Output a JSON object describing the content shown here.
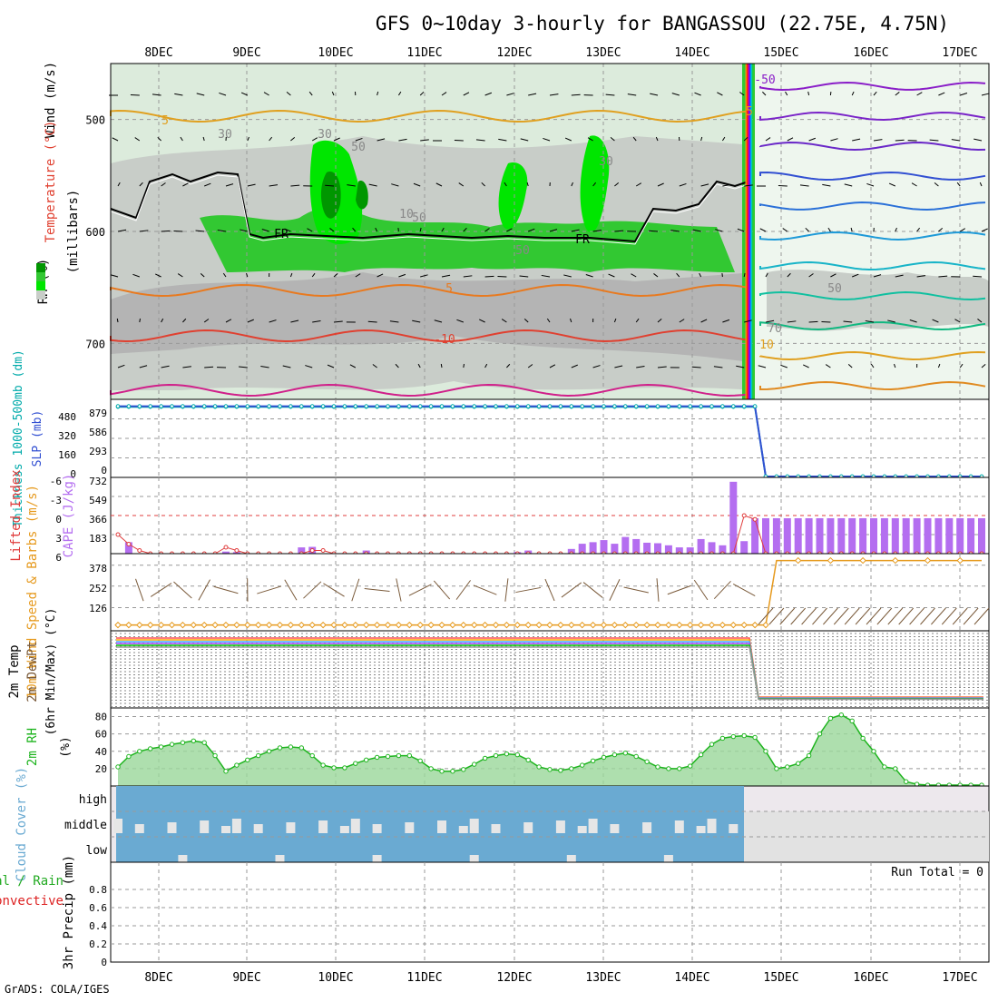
{
  "title": "GFS 0~10day 3-hourly for BANGASSOU (22.75E, 4.75N)",
  "credit": "GrADS: COLA/IGES",
  "colors": {
    "rh_dark": "#009600",
    "rh_mid": "#32c832",
    "rh_light": "#00e600",
    "gray_dark": "#b4b4b4",
    "gray_mid": "#c8cdc8",
    "gray_light": "#dcebdc",
    "gray_pale": "#eef6ee",
    "cloud_blue": "#6aaad2",
    "cape_purple": "#b46ef0",
    "li_red": "#e03c3c",
    "wind_orange": "#e69a1e",
    "thickness_cyan": "#00aaaa",
    "slp_blue": "#3250d2",
    "rh2m_green": "#1eb41e",
    "precip_green": "#22aa22",
    "precip_red": "#dd2222"
  },
  "chart_data": [
    {
      "type": "line",
      "panel": "upper-air",
      "title": "Wind (m/s) / Temperature (°C) / RH (%)",
      "ylabel": "(millibars)",
      "axis_labels": [
        "RH (%)",
        "Temperature (°C)",
        "Wind (m/s)"
      ],
      "yticks": [
        500,
        600,
        700
      ],
      "ylim": [
        450,
        750
      ],
      "x_dates": [
        "8DEC",
        "9DEC",
        "10DEC",
        "11DEC",
        "12DEC",
        "13DEC",
        "14DEC",
        "15DEC",
        "16DEC",
        "17DEC"
      ],
      "contour_labels": [
        "5",
        "5",
        "-5",
        "-10",
        "10",
        "-50",
        "FR",
        "FR",
        "30",
        "30",
        "30",
        "50",
        "50",
        "50",
        "50",
        "70",
        "10"
      ],
      "freezing_level_label": "FR"
    },
    {
      "type": "line",
      "panel": "thickness-slp",
      "ylabel_left": "Thickness 1000-500mb (dm)",
      "ylabel_right": "SLP (mb)",
      "left_ticks": [
        "480",
        "320",
        "160",
        "0"
      ],
      "right_ticks": [
        "879",
        "586",
        "293",
        "0"
      ],
      "series": [
        {
          "name": "thickness",
          "values": [
            905,
            905,
            905,
            905,
            905,
            905,
            905,
            905,
            905,
            905,
            905,
            905,
            905,
            905,
            905,
            905,
            905,
            905,
            905,
            905,
            905,
            905,
            905,
            905,
            905,
            905,
            905,
            905,
            905,
            905,
            905,
            905,
            905,
            905,
            905,
            905,
            905,
            905,
            905,
            905,
            905,
            905,
            905,
            905,
            905,
            905,
            905,
            905,
            905,
            905,
            905,
            905,
            905,
            905,
            905,
            905,
            905,
            905,
            905,
            905,
            10,
            10,
            10,
            10,
            10,
            10,
            10,
            10,
            10,
            10,
            10,
            10,
            10,
            10,
            10,
            10,
            10,
            10,
            10,
            10,
            10
          ]
        },
        {
          "name": "slp",
          "values": [
            912,
            912,
            912,
            912,
            912,
            912,
            912,
            912,
            912,
            912,
            912,
            912,
            912,
            912,
            912,
            912,
            912,
            912,
            912,
            912,
            912,
            912,
            912,
            912,
            912,
            912,
            912,
            912,
            912,
            912,
            912,
            912,
            912,
            912,
            912,
            912,
            912,
            912,
            912,
            912,
            912,
            912,
            912,
            912,
            912,
            912,
            912,
            912,
            912,
            912,
            912,
            912,
            912,
            912,
            912,
            912,
            912,
            912,
            912,
            912,
            12,
            12,
            12,
            12,
            12,
            12,
            12,
            12,
            12,
            12,
            12,
            12,
            12,
            12,
            12,
            12,
            12,
            12,
            12,
            12,
            12
          ]
        }
      ],
      "ylim": [
        0,
        1000
      ]
    },
    {
      "type": "bar",
      "panel": "cape-li",
      "ylabel_left": "Lifted Index",
      "ylabel_right": "CAPE (J/kg)",
      "left_ticks": [
        "-6",
        "-3",
        "0",
        "3",
        "6"
      ],
      "right_ticks": [
        "732",
        "549",
        "366",
        "183"
      ],
      "cape_values": [
        0,
        110,
        0,
        0,
        0,
        0,
        0,
        0,
        0,
        0,
        0,
        0,
        0,
        0,
        0,
        0,
        0,
        0,
        0,
        0,
        0,
        0,
        0,
        0,
        0,
        0,
        0,
        0,
        0,
        0,
        0,
        0,
        0,
        0,
        0,
        0,
        0,
        0,
        0,
        0,
        0,
        0,
        0,
        0,
        0,
        0,
        0,
        0,
        0,
        0,
        0,
        0,
        0,
        0,
        0,
        0,
        0,
        0,
        0,
        0,
        0,
        0,
        0,
        0,
        0,
        0,
        0,
        0,
        0,
        0,
        0,
        0,
        0,
        0,
        0,
        0,
        0,
        0,
        0,
        0,
        0
      ],
      "cape_extra": {
        "indices": [
          1,
          10,
          11,
          17,
          18,
          23,
          37,
          38,
          42,
          43,
          44,
          45,
          46,
          47,
          48,
          49,
          50,
          51,
          52,
          53,
          54,
          55,
          56,
          57,
          58,
          59,
          60,
          61,
          62,
          63,
          64,
          65,
          66,
          67,
          68,
          69,
          70,
          71,
          72,
          73,
          74,
          75,
          76,
          77,
          78,
          79,
          80
        ],
        "values": [
          110,
          20,
          15,
          60,
          65,
          30,
          15,
          30,
          45,
          95,
          110,
          130,
          95,
          160,
          140,
          105,
          100,
          80,
          60,
          60,
          140,
          110,
          80,
          690,
          120,
          340,
          340,
          340,
          340,
          340,
          340,
          340,
          340,
          340,
          340,
          340,
          340,
          340,
          340,
          340,
          340,
          340,
          340,
          340,
          340,
          340,
          340
        ]
      },
      "li_values": [
        3.0,
        4.5,
        5.5,
        6.0,
        6.0,
        6.0,
        6.0,
        6.0,
        6.0,
        6.0,
        5.0,
        5.5,
        6.0,
        6.0,
        6.0,
        6.0,
        6.0,
        6.0,
        5.5,
        5.5,
        6.0,
        6.0,
        6.0,
        6.0,
        6.0,
        6.0,
        6.0,
        6.0,
        6.0,
        6.0,
        6.0,
        6.0,
        6.0,
        6.0,
        6.0,
        6.0,
        6.0,
        6.0,
        6.0,
        6.0,
        6.0,
        6.0,
        6.0,
        6.0,
        6.0,
        6.0,
        6.0,
        6.0,
        6.0,
        6.0,
        6.0,
        6.0,
        6.0,
        6.0,
        6.0,
        6.0,
        6.0,
        6.0,
        0.0,
        0.6,
        6.0,
        6.0,
        6.0,
        6.0,
        6.0,
        6.0,
        6.0,
        6.0,
        6.0,
        6.0,
        6.0,
        6.0,
        6.0,
        6.0,
        6.0,
        6.0,
        6.0,
        6.0,
        6.0,
        6.0,
        6.0
      ]
    },
    {
      "type": "line",
      "panel": "wind10m",
      "ylabel": "10m Wind Speed & Barbs (m/s)",
      "yticks": [
        "378",
        "252",
        "126"
      ],
      "ylim": [
        0,
        420
      ],
      "values_note": "speed near 0 through 14DEC, jumps to ~400 after 15DEC",
      "speed_first": 2,
      "speed_last": 400
    },
    {
      "type": "line",
      "panel": "temp2m",
      "ylabel": "2m Temp / 2m DewPt / (6hr Min/Max) (°C)",
      "description_values": "temperatures stacked near top until 14DEC then drop to bottom"
    },
    {
      "type": "area",
      "panel": "rh2m",
      "ylabel": "2m RH (%)",
      "yticks": [
        "80",
        "60",
        "40",
        "20"
      ],
      "ylim": [
        0,
        90
      ],
      "values": [
        22,
        34,
        40,
        43,
        45,
        48,
        50,
        52,
        50,
        35,
        17,
        24,
        30,
        35,
        40,
        44,
        45,
        44,
        35,
        24,
        21,
        21,
        26,
        30,
        33,
        34,
        35,
        35,
        29,
        20,
        17,
        17,
        19,
        25,
        32,
        35,
        37,
        36,
        30,
        22,
        19,
        18,
        20,
        24,
        29,
        33,
        36,
        38,
        34,
        28,
        22,
        20,
        20,
        23,
        36,
        48,
        55,
        57,
        58,
        56,
        40,
        20,
        22,
        26,
        35,
        60,
        78,
        82,
        75,
        55,
        40,
        22,
        20,
        5,
        2,
        1,
        1,
        1,
        1,
        1,
        1
      ]
    },
    {
      "type": "area",
      "panel": "cloud",
      "ylabel": "Cloud Cover (%)",
      "ylevels": [
        "high",
        "middle",
        "low"
      ]
    },
    {
      "type": "bar",
      "panel": "precip",
      "ylabel": "3hr Precip (mm)",
      "legend": [
        "Total / Rain",
        "Convective"
      ],
      "yticks": [
        "0.8",
        "0.6",
        "0.4",
        "0.2",
        "0"
      ],
      "ylim": [
        0,
        1
      ],
      "run_total_label": "Run Total = 0",
      "values": []
    }
  ]
}
